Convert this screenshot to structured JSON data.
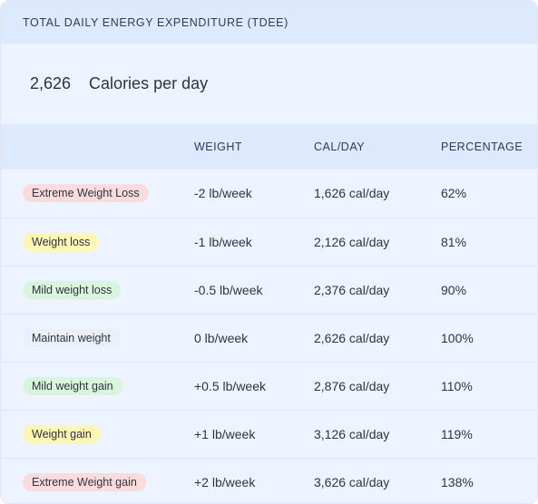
{
  "header": {
    "title": "TOTAL DAILY ENERGY EXPENDITURE (TDEE)"
  },
  "summary": {
    "value": "2,626",
    "unit": "Calories per day"
  },
  "table": {
    "columns": [
      "",
      "WEIGHT",
      "CAL/DAY",
      "PERCENTAGE"
    ],
    "rows": [
      {
        "label": "Extreme Weight Loss",
        "badge_color": "red",
        "weight": "-2 lb/week",
        "calories": "1,626 cal/day",
        "percentage": "62%"
      },
      {
        "label": "Weight loss",
        "badge_color": "yellow",
        "weight": "-1 lb/week",
        "calories": "2,126 cal/day",
        "percentage": "81%"
      },
      {
        "label": "Mild weight loss",
        "badge_color": "green",
        "weight": "-0.5 lb/week",
        "calories": "2,376 cal/day",
        "percentage": "90%"
      },
      {
        "label": "Maintain weight",
        "badge_color": "neutral",
        "weight": "0 lb/week",
        "calories": "2,626 cal/day",
        "percentage": "100%"
      },
      {
        "label": "Mild weight gain",
        "badge_color": "green",
        "weight": "+0.5 lb/week",
        "calories": "2,876 cal/day",
        "percentage": "110%"
      },
      {
        "label": "Weight gain",
        "badge_color": "yellow",
        "weight": "+1 lb/week",
        "calories": "3,126 cal/day",
        "percentage": "119%"
      },
      {
        "label": "Extreme Weight gain",
        "badge_color": "red",
        "weight": "+2 lb/week",
        "calories": "3,626 cal/day",
        "percentage": "138%"
      }
    ]
  },
  "colors": {
    "header_bg": "#dde9fc",
    "body_bg": "#eef4ff",
    "badge_red": "#fbdcdc",
    "badge_yellow": "#fdf6b4",
    "badge_green": "#d9f5de",
    "badge_neutral": "#eceff5"
  }
}
